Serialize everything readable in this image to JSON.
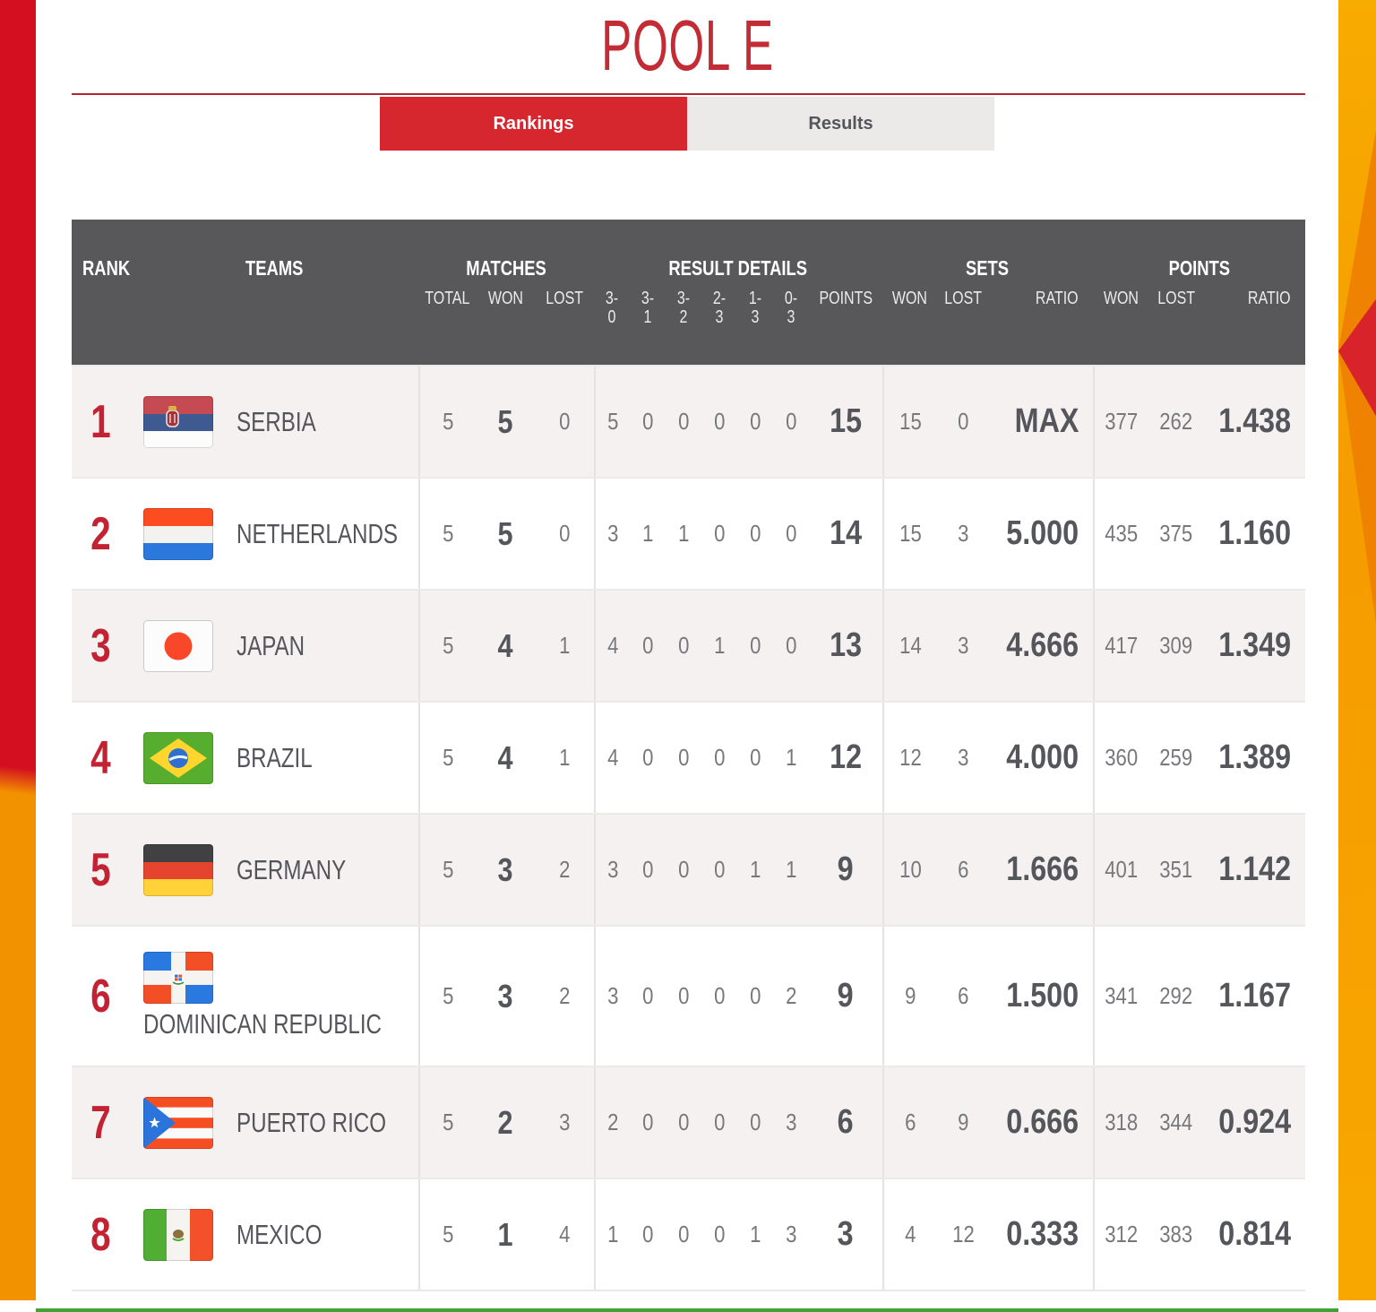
{
  "page": {
    "title": "POOL E",
    "tabs": [
      {
        "label": "Rankings",
        "active": true
      },
      {
        "label": "Results",
        "active": false
      }
    ]
  },
  "table": {
    "header": {
      "rank": "RANK",
      "teams": "TEAMS",
      "groups": {
        "matches": "MATCHES",
        "result_details": "RESULT DETAILS",
        "sets": "SETS",
        "points": "POINTS"
      },
      "sub": {
        "total": "TOTAL",
        "won": "WON",
        "lost": "LOST",
        "r30": "3-0",
        "r31": "3-1",
        "r32": "3-2",
        "r23": "2-3",
        "r13": "1-3",
        "r03": "0-3",
        "points": "POINTS",
        "sets_won": "WON",
        "sets_lost": "LOST",
        "sets_ratio": "RATIO",
        "pts_won": "WON",
        "pts_lost": "LOST",
        "pts_ratio": "RATIO"
      }
    },
    "rows": [
      {
        "rank": "1",
        "team": "SERBIA",
        "flag": "serbia",
        "matches": {
          "total": "5",
          "won": "5",
          "lost": "0"
        },
        "results": {
          "r30": "5",
          "r31": "0",
          "r32": "0",
          "r23": "0",
          "r13": "0",
          "r03": "0",
          "points": "15"
        },
        "sets": {
          "won": "15",
          "lost": "0",
          "ratio": "MAX"
        },
        "points": {
          "won": "377",
          "lost": "262",
          "ratio": "1.438"
        }
      },
      {
        "rank": "2",
        "team": "NETHERLANDS",
        "flag": "netherlands",
        "matches": {
          "total": "5",
          "won": "5",
          "lost": "0"
        },
        "results": {
          "r30": "3",
          "r31": "1",
          "r32": "1",
          "r23": "0",
          "r13": "0",
          "r03": "0",
          "points": "14"
        },
        "sets": {
          "won": "15",
          "lost": "3",
          "ratio": "5.000"
        },
        "points": {
          "won": "435",
          "lost": "375",
          "ratio": "1.160"
        }
      },
      {
        "rank": "3",
        "team": "JAPAN",
        "flag": "japan",
        "matches": {
          "total": "5",
          "won": "4",
          "lost": "1"
        },
        "results": {
          "r30": "4",
          "r31": "0",
          "r32": "0",
          "r23": "1",
          "r13": "0",
          "r03": "0",
          "points": "13"
        },
        "sets": {
          "won": "14",
          "lost": "3",
          "ratio": "4.666"
        },
        "points": {
          "won": "417",
          "lost": "309",
          "ratio": "1.349"
        }
      },
      {
        "rank": "4",
        "team": "BRAZIL",
        "flag": "brazil",
        "matches": {
          "total": "5",
          "won": "4",
          "lost": "1"
        },
        "results": {
          "r30": "4",
          "r31": "0",
          "r32": "0",
          "r23": "0",
          "r13": "0",
          "r03": "1",
          "points": "12"
        },
        "sets": {
          "won": "12",
          "lost": "3",
          "ratio": "4.000"
        },
        "points": {
          "won": "360",
          "lost": "259",
          "ratio": "1.389"
        }
      },
      {
        "rank": "5",
        "team": "GERMANY",
        "flag": "germany",
        "matches": {
          "total": "5",
          "won": "3",
          "lost": "2"
        },
        "results": {
          "r30": "3",
          "r31": "0",
          "r32": "0",
          "r23": "0",
          "r13": "1",
          "r03": "1",
          "points": "9"
        },
        "sets": {
          "won": "10",
          "lost": "6",
          "ratio": "1.666"
        },
        "points": {
          "won": "401",
          "lost": "351",
          "ratio": "1.142"
        }
      },
      {
        "rank": "6",
        "team": "DOMINICAN REPUBLIC",
        "flag": "dominican-republic",
        "matches": {
          "total": "5",
          "won": "3",
          "lost": "2"
        },
        "results": {
          "r30": "3",
          "r31": "0",
          "r32": "0",
          "r23": "0",
          "r13": "0",
          "r03": "2",
          "points": "9"
        },
        "sets": {
          "won": "9",
          "lost": "6",
          "ratio": "1.500"
        },
        "points": {
          "won": "341",
          "lost": "292",
          "ratio": "1.167"
        }
      },
      {
        "rank": "7",
        "team": "PUERTO RICO",
        "flag": "puerto-rico",
        "matches": {
          "total": "5",
          "won": "2",
          "lost": "3"
        },
        "results": {
          "r30": "2",
          "r31": "0",
          "r32": "0",
          "r23": "0",
          "r13": "0",
          "r03": "3",
          "points": "6"
        },
        "sets": {
          "won": "6",
          "lost": "9",
          "ratio": "0.666"
        },
        "points": {
          "won": "318",
          "lost": "344",
          "ratio": "0.924"
        }
      },
      {
        "rank": "8",
        "team": "MEXICO",
        "flag": "mexico",
        "matches": {
          "total": "5",
          "won": "1",
          "lost": "4"
        },
        "results": {
          "r30": "1",
          "r31": "0",
          "r32": "0",
          "r23": "0",
          "r13": "1",
          "r03": "3",
          "points": "3"
        },
        "sets": {
          "won": "4",
          "lost": "12",
          "ratio": "0.333"
        },
        "points": {
          "won": "312",
          "lost": "383",
          "ratio": "0.814"
        }
      }
    ]
  },
  "colors": {
    "accent_red": "#c32b35",
    "tab_red": "#d6262e",
    "rank_red": "#c32233",
    "header_gray": "#58585a",
    "row_alt": "#f5f1f0",
    "green_rule": "#3fa435",
    "stripe_red": "#d40f1f",
    "stripe_orange": "#f59c00"
  }
}
